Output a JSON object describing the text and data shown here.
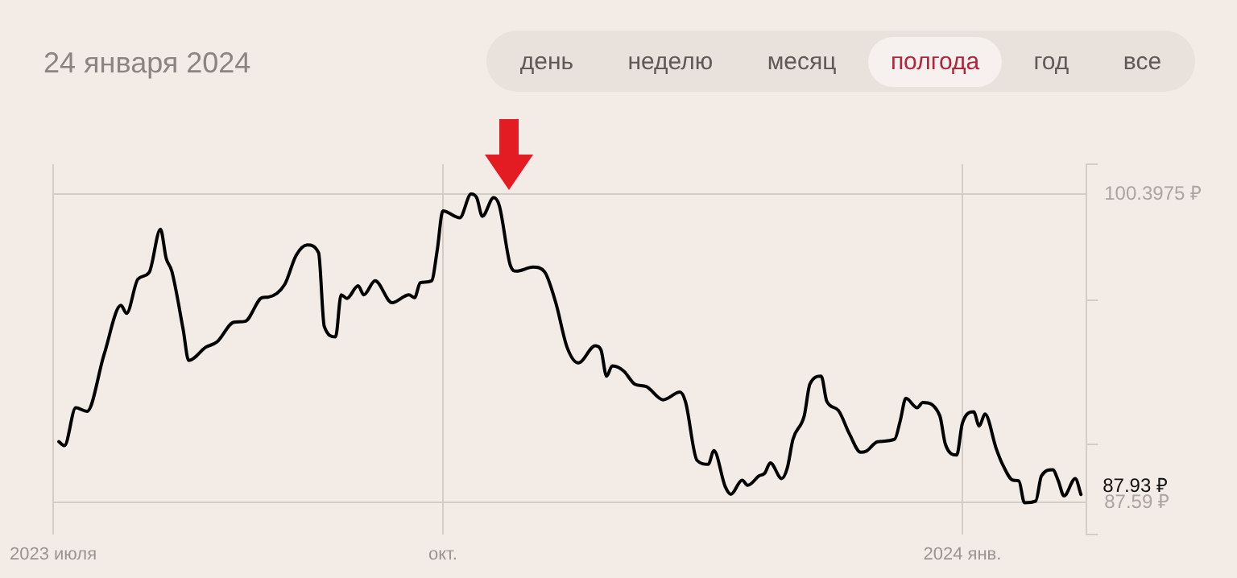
{
  "chart_data": {
    "type": "line",
    "title": "24 января 2024",
    "annotations": [
      "день",
      "неделю",
      "месяц",
      "полгода",
      "год",
      "все",
      "87.93 ₽"
    ],
    "x": [
      "2023-07-25",
      "2023-07-26",
      "2023-07-28",
      "2023-07-30",
      "2023-08-02",
      "2023-08-05",
      "2023-08-06",
      "2023-08-08",
      "2023-08-10",
      "2023-08-12",
      "2023-08-13",
      "2023-08-14",
      "2023-08-16",
      "2023-08-17",
      "2023-08-20",
      "2023-08-22",
      "2023-08-25",
      "2023-08-27",
      "2023-08-30",
      "2023-08-31",
      "2023-09-03",
      "2023-09-05",
      "2023-09-07",
      "2023-09-09",
      "2023-09-10",
      "2023-09-12",
      "2023-09-13",
      "2023-09-14",
      "2023-09-16",
      "2023-09-17",
      "2023-09-19",
      "2023-09-22",
      "2023-09-25",
      "2023-09-26",
      "2023-09-27",
      "2023-09-29",
      "2023-09-30",
      "2023-10-01",
      "2023-10-04",
      "2023-10-06",
      "2023-10-07",
      "2023-10-08",
      "2023-10-10",
      "2023-10-11",
      "2023-10-13",
      "2023-10-14",
      "2023-10-17",
      "2023-10-19",
      "2023-10-21",
      "2023-10-23",
      "2023-10-25",
      "2023-10-28",
      "2023-10-29",
      "2023-10-30",
      "2023-10-31",
      "2023-11-02",
      "2023-11-04",
      "2023-11-06",
      "2023-11-09",
      "2023-11-12",
      "2023-11-13",
      "2023-11-15",
      "2023-11-17",
      "2023-11-18",
      "2023-11-20",
      "2023-11-21",
      "2023-11-23",
      "2023-11-24",
      "2023-11-26",
      "2023-11-27",
      "2023-11-28",
      "2023-11-30",
      "2023-12-01",
      "2023-12-02",
      "2023-12-04",
      "2023-12-05",
      "2023-12-07",
      "2023-12-08",
      "2023-12-10",
      "2023-12-12",
      "2023-12-14",
      "2023-12-15",
      "2023-12-17",
      "2023-12-20",
      "2023-12-21",
      "2023-12-22",
      "2023-12-24",
      "2023-12-25",
      "2023-12-28",
      "2023-12-29",
      "2023-12-31",
      "2024-01-01",
      "2024-01-03",
      "2024-01-04",
      "2024-01-05",
      "2024-01-07",
      "2024-01-08",
      "2024-01-10",
      "2024-01-11",
      "2024-01-12",
      "2024-01-14",
      "2024-01-15",
      "2024-01-17",
      "2024-01-18",
      "2024-01-19",
      "2024-01-21",
      "2024-01-22"
    ],
    "series": [
      {
        "color": "#000000",
        "values": [
          90.12,
          89.96,
          91.53,
          91.38,
          93.73,
          95.78,
          95.45,
          96.87,
          97.15,
          98.94,
          97.74,
          97.2,
          94.8,
          93.49,
          94.04,
          94.26,
          95.08,
          95.12,
          96.1,
          96.12,
          96.65,
          97.85,
          98.29,
          97.96,
          94.91,
          94.47,
          96.22,
          96.07,
          96.59,
          96.22,
          96.8,
          95.89,
          96.22,
          96.1,
          96.72,
          96.8,
          98.06,
          99.7,
          99.42,
          100.4,
          100.25,
          99.48,
          100.25,
          99.92,
          97.41,
          97.2,
          97.37,
          97.18,
          95.89,
          94.04,
          93.39,
          94.1,
          93.93,
          92.84,
          93.27,
          93.06,
          92.51,
          92.41,
          91.86,
          92.18,
          91.75,
          89.35,
          89.18,
          89.75,
          88.26,
          87.94,
          88.52,
          88.31,
          88.7,
          88.81,
          89.24,
          88.59,
          89.03,
          90.22,
          91.2,
          92.51,
          92.84,
          91.79,
          91.43,
          90.45,
          89.68,
          89.73,
          90.12,
          90.22,
          90.99,
          91.92,
          91.53,
          91.75,
          91.2,
          90.01,
          89.57,
          90.88,
          91.36,
          90.77,
          91.27,
          89.83,
          89.24,
          88.52,
          88.49,
          87.59,
          87.66,
          88.7,
          88.96,
          88.49,
          87.87,
          88.59,
          87.93
        ]
      }
    ],
    "xlim": [
      "2023-07-24",
      "2024-01-23"
    ],
    "xticks": [
      {
        "value": "2023-07-24",
        "label": "2023 июля"
      },
      {
        "value": "2023-10-01",
        "label": "окт."
      },
      {
        "value": "2024-01-01",
        "label": "2024 янв."
      }
    ],
    "ylim": [
      86.28,
      101.64
    ],
    "yticks": [
      {
        "value": 86.28,
        "label": null
      },
      {
        "value": 87.59,
        "label": "87.59 ₽"
      },
      {
        "value": 90,
        "label": null
      },
      {
        "value": 96,
        "label": null
      },
      {
        "value": 100.3975,
        "label": "100.3975 ₽"
      },
      {
        "value": 101.64,
        "label": null
      }
    ],
    "grid": true,
    "legend": false,
    "marker": "none",
    "line_style": "solid"
  }
}
